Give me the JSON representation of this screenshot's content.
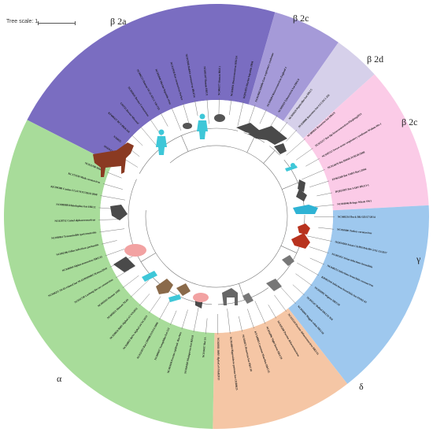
{
  "tree_scale": {
    "label": "Tree scale: 1"
  },
  "clades": [
    {
      "id": "b2a",
      "label": "β 2a",
      "color": "#7a6dc1",
      "start": 207,
      "end": 286
    },
    {
      "id": "b2c1",
      "label": "β 2c",
      "color": "#a59ad8",
      "start": 286,
      "end": 305
    },
    {
      "id": "b2d",
      "label": "β 2d",
      "color": "#d6d0ea",
      "start": 305,
      "end": 318
    },
    {
      "id": "b2c2",
      "label": "β 2c",
      "color": "#fbcbe7",
      "start": 318,
      "end": 357
    },
    {
      "id": "gamma",
      "label": "γ",
      "color": "#9ec8ee",
      "start": 357,
      "end": 412
    },
    {
      "id": "delta",
      "label": "δ",
      "color": "#f5c6a5",
      "start": 412,
      "end": 451
    },
    {
      "id": "alpha",
      "label": "α",
      "color": "#a8dc9a",
      "start": 451,
      "end": 567
    }
  ],
  "taxa": [
    "SN435124",
    "NX0025",
    "KF686437 BCV-BKKAH",
    "U00735 Bovine Mucosal",
    "NC003045 Bovine Coronavirus",
    "NC006213 Human OC43 ATCC VR-759",
    "NC001846 Murine hepatitis virus",
    "NC012936 Rat coronavirus Parker",
    "NC017083 Rabbit coronavirus HKU14",
    "NC005147 Human HKU1",
    "NC006577 Human HKU1",
    "NC026011 Betacoronavirus HKU24",
    "DQ011855 Murine hepatitis JHM",
    "NC019843 Middle East respiratory syndrome",
    "NC038294 Betacoronavirus England 1",
    "NC009019 Tylonycteris bat HKU4",
    "NC009020 Pipistrellus bat HKU5",
    "NC030886 Rousettus bat GCCDC1 356",
    "NC009021 Rousettus bat HKU9",
    "NC025217 Bat Hp-betacoronavirus/Zhejiang2013",
    "NC045512 Severe acute respiratory syndrome Wuhan-Hu-1",
    "NC014470 Bat BM48-31/BGR/2008",
    "EF065508 Bat SARS Rm1/2004",
    "DQ022305 Bat SARS HKU3-1",
    "NC010646 Beluga Whale SW1",
    "NC048214 Duck DK/GD/27/2014",
    "NC010800 Turkey coronavirus",
    "OQ434260 Avian Ch/HN/PekAW-2/GI-13/2017",
    "NC001451 Avian infectious bronchitis",
    "NC048213 Infectious bronchitis coronavirus",
    "KR902510 Infectious bronchitis bat FNH2-03",
    "NC016995 Wigeon HKU20",
    "NC011547 Bulbul HKU11-934",
    "NC016993 Magpie-robin HKU18",
    "NC011550 Porcine deltacoronavirus HKU15",
    "NC039208 Porcine deltacoronavirus",
    "NC016996 Night heron HKU19",
    "KY346865 Common Moorhen HKU21",
    "NC018871 Rousettus bat HKU10",
    "NC054004 Hipposideros pomona bat CHB0025",
    "NC028811 BtRf-AlphaCoV/HuB2013",
    "NC010437 Bat 1A",
    "NC010438 Miniopterus bat HKU8",
    "NC003436 Porcine epidemic diarrhea",
    "NC009657 Scotophilus bat 512",
    "NC022103 Bat CDPHE15/USA/2006",
    "NC028833 BtNv-AlphaCoV/SC2013",
    "NC028824 BtRf-AlphaCoV/YN2012",
    "NC005831 Human NL63",
    "NC002645 Human 229E",
    "NC032730 Lucheng Rn rat coronavirus",
    "NC048211 NL63-related bat NL63/DMMRC/Kenya/2010",
    "NC046964 Alphacoronavirus HKU33",
    "NC002306 Feline infectious peritonitis",
    "NC038861 Transmissible gastroenteritis",
    "NC028752 Camel alphacoronavirus",
    "NC009988 Rhinolophus bat HKU2",
    "KF294380 Canine CCoV/NTU336/F/2008",
    "KC175339 Mink coronavirus",
    "NC023760 Mink 1"
  ]
}
